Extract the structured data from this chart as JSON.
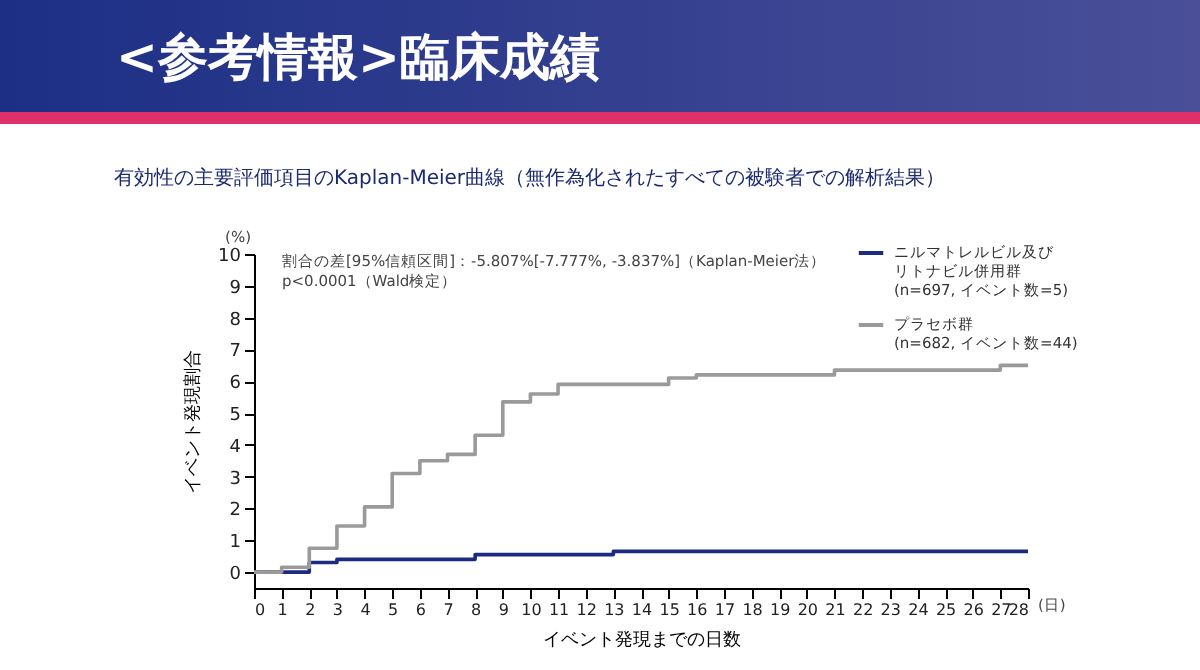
{
  "chart_data": {
    "type": "step",
    "title": "<参考情報>臨床成績",
    "subtitle": "有効性の主要評価項目のKaplan-Meier曲線（無作為化されたすべての被験者での解析結果）",
    "xlabel": "イベント発現までの日数",
    "ylabel": "イベント発現割合",
    "annotations": [
      "(%)",
      "(日)",
      "割合の差[95%信頼区間]：-5.807%[-7.777%, -3.837%]（Kaplan-Meier法）",
      "p<0.0001（Wald検定）"
    ],
    "series": [
      {
        "name": "ニルマトレルビル及びリトナビル併用群(n=697, イベント数=5)",
        "color": "#1c2a80",
        "x": [
          0,
          2,
          3,
          8,
          13,
          28
        ],
        "values": [
          0,
          0.3,
          0.4,
          0.55,
          0.65,
          0.65
        ]
      },
      {
        "name": "プラセボ群(n=682, イベント数=44)",
        "color": "#9a9a9a",
        "x": [
          0,
          1,
          2,
          3,
          4,
          5,
          6,
          7,
          8,
          9,
          10,
          11,
          15,
          16,
          21,
          27,
          28
        ],
        "values": [
          0,
          0.15,
          0.75,
          1.45,
          2.05,
          3.1,
          3.5,
          3.7,
          4.3,
          5.35,
          5.6,
          5.9,
          6.1,
          6.2,
          6.35,
          6.5,
          6.5
        ]
      }
    ],
    "xlim": [
      0,
      28
    ],
    "xticks": [
      0,
      1,
      2,
      3,
      4,
      5,
      6,
      7,
      8,
      9,
      10,
      11,
      12,
      13,
      14,
      15,
      16,
      17,
      18,
      19,
      20,
      21,
      22,
      23,
      24,
      25,
      26,
      27,
      28
    ],
    "ylim": [
      -0.5,
      10
    ],
    "yticks": [
      0,
      1,
      2,
      3,
      4,
      5,
      6,
      7,
      8,
      9,
      10
    ],
    "legend": "top right",
    "grid": false,
    "marker": "none",
    "line_style": "solid"
  }
}
